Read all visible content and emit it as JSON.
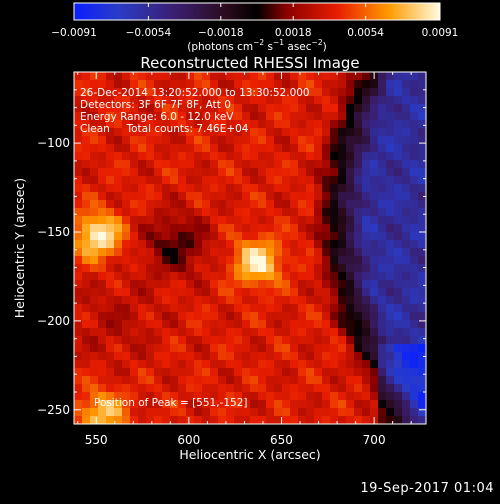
{
  "chart_data": {
    "type": "heatmap",
    "title": "Reconstructed RHESSI Image",
    "xlabel": "Heliocentric X (arcsec)",
    "ylabel": "Heliocentric Y (arcsec)",
    "xlim": [
      538,
      728
    ],
    "ylim": [
      -258,
      -60
    ],
    "x_ticks": [
      550,
      600,
      650,
      700
    ],
    "x_tick_labels": [
      "550",
      "600",
      "650",
      "700"
    ],
    "y_ticks": [
      -100,
      -150,
      -200,
      -250
    ],
    "y_tick_labels": [
      "−100",
      "−150",
      "−200",
      "−250"
    ],
    "colorbar": {
      "range": [
        -0.0091,
        0.0091
      ],
      "ticks": [
        -0.0091,
        -0.0054,
        -0.0018,
        0.0018,
        0.0054,
        0.0091
      ],
      "tick_labels": [
        "−0.0091",
        "−0.0054",
        "−0.0018",
        "0.0018",
        "0.0054",
        "0.0091"
      ],
      "label_main": "(photons cm",
      "label_exp1": "−2",
      "label_mid": " s",
      "label_exp2": "−1",
      "label_end": " asec",
      "label_exp3": "−2",
      "label_close": ")"
    },
    "annotations": [
      "26-Dec-2014 13:20:52.000 to 13:30:52.000",
      "Detectors: 3F 6F 7F 8F, Att 0",
      "Energy Range: 6.0 - 12.0 keV",
      "Clean     Total counts: 7.46E+04"
    ],
    "peak_label": "Position of Peak = [551,-152]",
    "peak_position": [
      551,
      -152
    ],
    "sources": [
      {
        "x": 551,
        "y": -152,
        "intensity": 1.0
      },
      {
        "x": 637,
        "y": -167,
        "intensity": 0.95
      },
      {
        "x": 553,
        "y": -252,
        "intensity": 0.75
      }
    ],
    "timestamp": "19-Sep-2017 01:04"
  }
}
